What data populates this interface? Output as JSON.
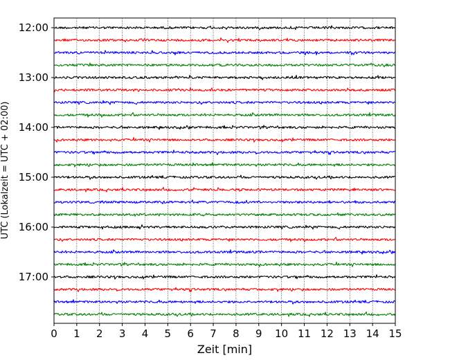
{
  "chart_data": {
    "type": "line",
    "title": "",
    "xlabel": "Zeit  [min]",
    "ylabel": "UTC (Lokalzeit = UTC + 02:00)",
    "xlim": [
      0,
      15
    ],
    "x_ticks": [
      "0",
      "1",
      "2",
      "3",
      "4",
      "5",
      "6",
      "7",
      "8",
      "9",
      "10",
      "11",
      "12",
      "13",
      "14",
      "15"
    ],
    "y_ticks": [
      "12:00",
      "13:00",
      "14:00",
      "15:00",
      "16:00",
      "17:00"
    ],
    "grid": "vertical dotted at each minute",
    "trace_colors": [
      "#000000",
      "#ff0000",
      "#0000ff",
      "#008000"
    ],
    "series": [
      {
        "start": "12:00",
        "color": "#000000"
      },
      {
        "start": "12:15",
        "color": "#ff0000"
      },
      {
        "start": "12:30",
        "color": "#0000ff"
      },
      {
        "start": "12:45",
        "color": "#008000"
      },
      {
        "start": "13:00",
        "color": "#000000"
      },
      {
        "start": "13:15",
        "color": "#ff0000"
      },
      {
        "start": "13:30",
        "color": "#0000ff"
      },
      {
        "start": "13:45",
        "color": "#008000"
      },
      {
        "start": "14:00",
        "color": "#000000"
      },
      {
        "start": "14:15",
        "color": "#ff0000"
      },
      {
        "start": "14:30",
        "color": "#0000ff"
      },
      {
        "start": "14:45",
        "color": "#008000"
      },
      {
        "start": "15:00",
        "color": "#000000"
      },
      {
        "start": "15:15",
        "color": "#ff0000"
      },
      {
        "start": "15:30",
        "color": "#0000ff"
      },
      {
        "start": "15:45",
        "color": "#008000"
      },
      {
        "start": "16:00",
        "color": "#000000"
      },
      {
        "start": "16:15",
        "color": "#ff0000"
      },
      {
        "start": "16:30",
        "color": "#0000ff"
      },
      {
        "start": "16:45",
        "color": "#008000"
      },
      {
        "start": "17:00",
        "color": "#000000"
      },
      {
        "start": "17:15",
        "color": "#ff0000"
      },
      {
        "start": "17:30",
        "color": "#0000ff"
      },
      {
        "start": "17:45",
        "color": "#008000"
      }
    ]
  }
}
